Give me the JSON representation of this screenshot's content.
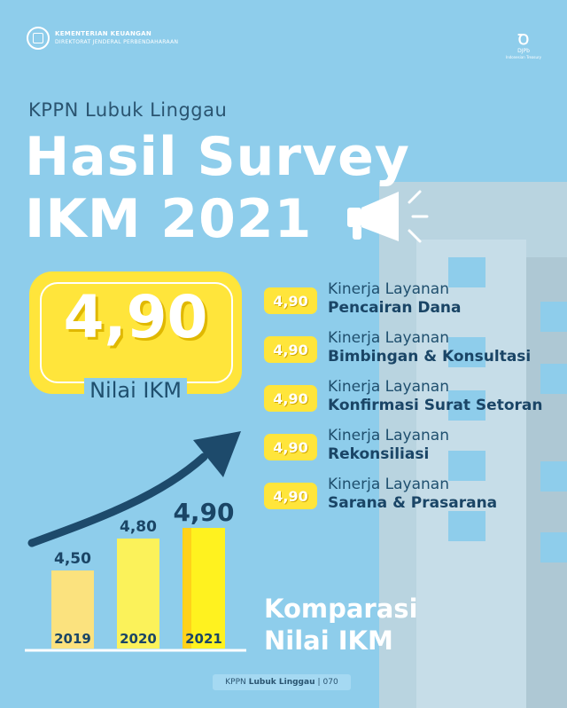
{
  "header": {
    "ministry_line1": "KEMENTERIAN KEUANGAN",
    "ministry_line2": "DIREKTORAT JENDERAL PERBENDAHARAAN",
    "brand_mark": "DJPb",
    "brand_sub": "Indonesian Treasury"
  },
  "subtitle": "KPPN Lubuk Linggau",
  "title_line1": "Hasil Survey",
  "title_line2": "IKM 2021",
  "score": {
    "value": "4,90",
    "label": "Nilai IKM"
  },
  "items": [
    {
      "score": "4,90",
      "line1": "Kinerja Layanan",
      "line2": "Pencairan Dana"
    },
    {
      "score": "4,90",
      "line1": "Kinerja Layanan",
      "line2": "Bimbingan & Konsultasi"
    },
    {
      "score": "4,90",
      "line1": "Kinerja Layanan",
      "line2": "Konfirmasi Surat Setoran"
    },
    {
      "score": "4,90",
      "line1": "Kinerja Layanan",
      "line2": "Rekonsiliasi"
    },
    {
      "score": "4,90",
      "line1": "Kinerja Layanan",
      "line2": "Sarana & Prasarana"
    }
  ],
  "comparison": {
    "line1": "Komparasi",
    "line2": "Nilai IKM"
  },
  "chart_data": {
    "type": "bar",
    "categories": [
      "2019",
      "2020",
      "2021"
    ],
    "values": [
      4.5,
      4.8,
      4.9
    ],
    "value_labels": [
      "4,50",
      "4,80",
      "4,90"
    ],
    "title": "",
    "xlabel": "",
    "ylabel": "",
    "grid": false,
    "colors": [
      "#fbe27e",
      "#fbf25a",
      "#fff21f"
    ]
  },
  "footer": {
    "name": "KPPN",
    "bold": "Lubuk Linggau",
    "number": "070"
  },
  "colors": {
    "background": "#8ecdeb",
    "accent": "#ffe53b",
    "navy": "#1a4566",
    "arrow": "#1d4a6b"
  }
}
